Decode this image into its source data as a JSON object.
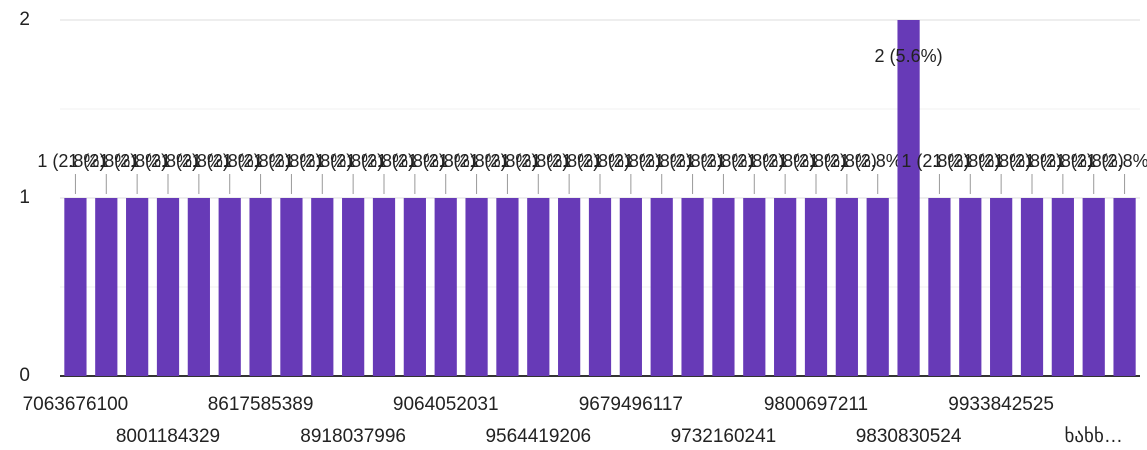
{
  "chart_data": {
    "type": "bar",
    "categories": [
      "7063676100",
      null,
      null,
      "8001184329",
      null,
      null,
      "8617585389",
      null,
      null,
      "8918037996",
      null,
      null,
      "9064052031",
      null,
      null,
      "9564419206",
      null,
      null,
      "9679496117",
      null,
      null,
      "9732160241",
      null,
      null,
      "9800697211",
      null,
      null,
      "9830830524",
      null,
      null,
      "9933842525",
      null,
      null,
      "ხახხ…",
      null
    ],
    "values": [
      1,
      1,
      1,
      1,
      1,
      1,
      1,
      1,
      1,
      1,
      1,
      1,
      1,
      1,
      1,
      1,
      1,
      1,
      1,
      1,
      1,
      1,
      1,
      1,
      1,
      1,
      1,
      2,
      1,
      1,
      1,
      1,
      1,
      1,
      1
    ],
    "value_labels": [
      "1 (2.8%)",
      "1 (2.8%)",
      "1 (2.8%)",
      "1 (2.8%)",
      "1 (2.8%)",
      "1 (2.8%)",
      "1 (2.8%)",
      "1 (2.8%)",
      "1 (2.8%)",
      "1 (2.8%)",
      "1 (2.8%)",
      "1 (2.8%)",
      "1 (2.8%)",
      "1 (2.8%)",
      "1 (2.8%)",
      "1 (2.8%)",
      "1 (2.8%)",
      "1 (2.8%)",
      "1 (2.8%)",
      "1 (2.8%)",
      "1 (2.8%)",
      "1 (2.8%)",
      "1 (2.8%)",
      "1 (2.8%)",
      "1 (2.8%)",
      "1 (2.8%)",
      "1 (2.8%)",
      "2 (5.6%)",
      "1 (2.8%)",
      "1 (2.8%)",
      "1 (2.8%)",
      "1 (2.8%)",
      "1 (2.8%)",
      "1 (2.8%)",
      "1 (2.8%)"
    ],
    "color": "#673ab7",
    "ylim": [
      0,
      2
    ],
    "yticks": [
      0,
      1,
      2
    ],
    "minor_yticks": [
      0.5,
      1.5
    ],
    "grid": true
  }
}
